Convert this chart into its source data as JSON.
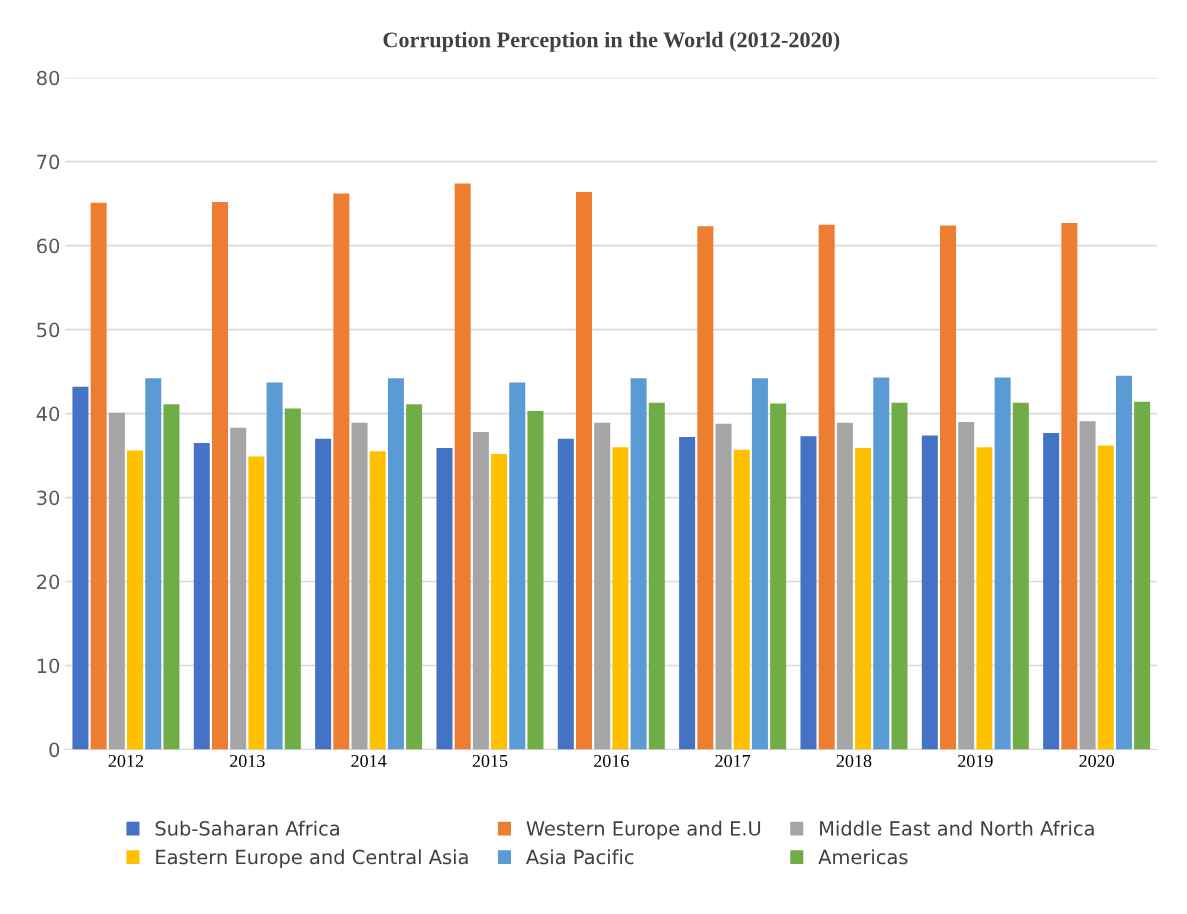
{
  "chart_data": {
    "type": "bar",
    "title": "Corruption Perception in the World (2012-2020)",
    "categories": [
      "2012",
      "2013",
      "2014",
      "2015",
      "2016",
      "2017",
      "2018",
      "2019",
      "2020"
    ],
    "series": [
      {
        "name": "Sub-Saharan Africa",
        "color": "#4472c4",
        "values": [
          43.2,
          36.5,
          37.0,
          35.9,
          37.0,
          37.2,
          37.3,
          37.4,
          37.7
        ]
      },
      {
        "name": "Western Europe and E.U",
        "color": "#ed7d31",
        "values": [
          65.1,
          65.2,
          66.2,
          67.4,
          66.4,
          62.3,
          62.5,
          62.4,
          62.7
        ]
      },
      {
        "name": "Middle East and North Africa",
        "color": "#a5a5a5",
        "values": [
          40.1,
          38.3,
          38.9,
          37.8,
          38.9,
          38.8,
          38.9,
          39.0,
          39.1
        ]
      },
      {
        "name": "Eastern Europe and Central Asia",
        "color": "#ffc000",
        "values": [
          35.6,
          34.9,
          35.5,
          35.2,
          36.0,
          35.7,
          35.9,
          36.0,
          36.2
        ]
      },
      {
        "name": "Asia Pacific",
        "color": "#5b9bd5",
        "values": [
          44.2,
          43.7,
          44.2,
          43.7,
          44.2,
          44.2,
          44.3,
          44.3,
          44.5
        ]
      },
      {
        "name": "Americas",
        "color": "#70ad47",
        "values": [
          41.1,
          40.6,
          41.1,
          40.3,
          41.3,
          41.2,
          41.3,
          41.3,
          41.4
        ]
      }
    ],
    "ylim": [
      0,
      80
    ],
    "yticks": [
      0,
      10,
      20,
      30,
      40,
      50,
      60,
      70,
      80
    ],
    "grid": "y",
    "legend": "bottom"
  }
}
